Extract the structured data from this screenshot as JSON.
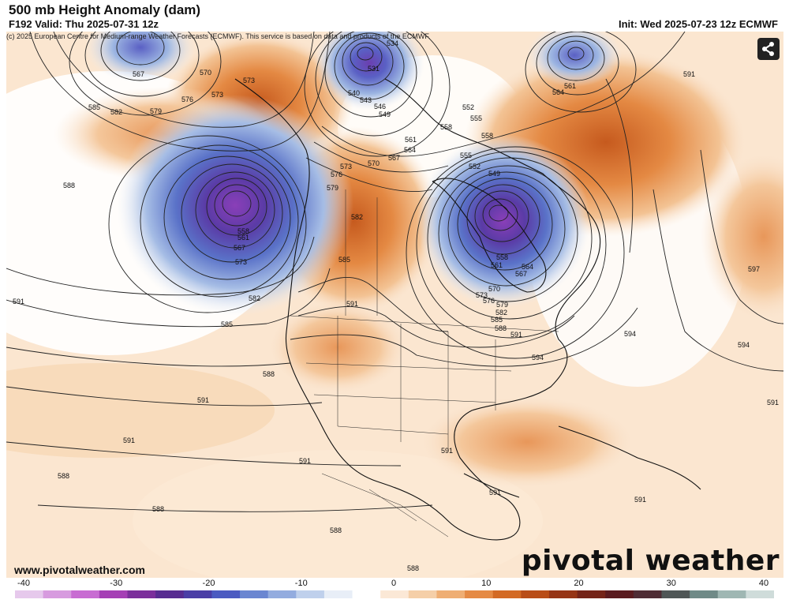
{
  "header": {
    "title": "500 mb Height Anomaly (dam)",
    "valid": "F192 Valid: Thu 2025-07-31 12z",
    "init": "Init: Wed 2025-07-23 12z ECMWF",
    "copyright": "(c) 2025 European Centre for Medium-range Weather Forecasts (ECMWF). This service is based on data and products of the ECMWF."
  },
  "footer": {
    "url": "www.pivotalweather.com",
    "logo": "pivotal weather"
  },
  "share": {
    "icon": "share-icon"
  },
  "colorbar": {
    "ticks": [
      "-40",
      "-30",
      "-20",
      "-10",
      "0",
      "10",
      "20",
      "30",
      "40"
    ],
    "colors": [
      "#e6c9ec",
      "#d79bdf",
      "#c86cd2",
      "#a53fb5",
      "#7b2f9b",
      "#572c91",
      "#4a3ea6",
      "#4b5bc1",
      "#6a86d1",
      "#93acdf",
      "#bfd0ec",
      "#e8eef7",
      "#ffffff",
      "#fbe8d6",
      "#f5cfa8",
      "#efae73",
      "#e58a44",
      "#d36a24",
      "#b94d17",
      "#963515",
      "#742418",
      "#5a1b1f",
      "#4e2c34",
      "#4f5656",
      "#6f8a87",
      "#9fb7b3",
      "#cfdcda"
    ]
  },
  "map_labels": [
    {
      "name": "contour-567-nw",
      "text": "567"
    },
    {
      "name": "contour-570-nw",
      "text": "570"
    },
    {
      "name": "contour-573-nw",
      "text": "573"
    },
    {
      "name": "contour-573-alaska",
      "text": "573"
    },
    {
      "name": "contour-576-nw",
      "text": "576"
    },
    {
      "name": "contour-579-nw",
      "text": "579"
    },
    {
      "name": "contour-582-nw",
      "text": "582"
    },
    {
      "name": "contour-585-nw",
      "text": "585"
    },
    {
      "name": "contour-588-west",
      "text": "588"
    },
    {
      "name": "contour-591-west",
      "text": "591"
    },
    {
      "name": "contour-585-pacific",
      "text": "585"
    },
    {
      "name": "contour-582-pacific",
      "text": "582"
    },
    {
      "name": "contour-588-pacific",
      "text": "588"
    },
    {
      "name": "contour-591-pacific",
      "text": "591"
    },
    {
      "name": "contour-591-sw",
      "text": "591"
    },
    {
      "name": "contour-591-baja",
      "text": "591"
    },
    {
      "name": "contour-588-south",
      "text": "588"
    },
    {
      "name": "contour-588-s2",
      "text": "588"
    },
    {
      "name": "contour-588-s3",
      "text": "588"
    },
    {
      "name": "contour-588-bottom",
      "text": "588"
    },
    {
      "name": "contour-558-low",
      "text": "558"
    },
    {
      "name": "contour-561-low",
      "text": "561"
    },
    {
      "name": "contour-567-low",
      "text": "567"
    },
    {
      "name": "contour-573-low",
      "text": "573"
    },
    {
      "name": "contour-534-arctic",
      "text": "534"
    },
    {
      "name": "contour-531-arctic",
      "text": "531"
    },
    {
      "name": "contour-540-arctic",
      "text": "540"
    },
    {
      "name": "contour-543-arctic",
      "text": "543"
    },
    {
      "name": "contour-546-arctic",
      "text": "546"
    },
    {
      "name": "contour-549-arctic",
      "text": "549"
    },
    {
      "name": "contour-552-hudson",
      "text": "552"
    },
    {
      "name": "contour-555-hudson",
      "text": "555"
    },
    {
      "name": "contour-558-hudson",
      "text": "558"
    },
    {
      "name": "contour-558-hudson2",
      "text": "558"
    },
    {
      "name": "contour-561-greenland",
      "text": "561"
    },
    {
      "name": "contour-564-greenland",
      "text": "564"
    },
    {
      "name": "contour-591-atlantic-ne",
      "text": "591"
    },
    {
      "name": "contour-561-canada",
      "text": "561"
    },
    {
      "name": "contour-564-canada",
      "text": "564"
    },
    {
      "name": "contour-567-canada",
      "text": "567"
    },
    {
      "name": "contour-570-canada",
      "text": "570"
    },
    {
      "name": "contour-573-canada",
      "text": "573"
    },
    {
      "name": "contour-576-canada",
      "text": "576"
    },
    {
      "name": "contour-579-canada",
      "text": "579"
    },
    {
      "name": "contour-582-canada",
      "text": "582"
    },
    {
      "name": "contour-585-canada",
      "text": "585"
    },
    {
      "name": "contour-555-quebec",
      "text": "555"
    },
    {
      "name": "contour-552-quebec",
      "text": "552"
    },
    {
      "name": "contour-549-quebec",
      "text": "549"
    },
    {
      "name": "contour-558-ontario",
      "text": "558"
    },
    {
      "name": "contour-561-ontario",
      "text": "561"
    },
    {
      "name": "contour-564-ontario",
      "text": "564"
    },
    {
      "name": "contour-567-ontario",
      "text": "567"
    },
    {
      "name": "contour-570-ontario",
      "text": "570"
    },
    {
      "name": "contour-573-ontario",
      "text": "573"
    },
    {
      "name": "contour-576-ontario",
      "text": "576"
    },
    {
      "name": "contour-579-ontario",
      "text": "579"
    },
    {
      "name": "contour-582-ontario",
      "text": "582"
    },
    {
      "name": "contour-585-ontario",
      "text": "585"
    },
    {
      "name": "contour-588-newengland",
      "text": "588"
    },
    {
      "name": "contour-591-newengland",
      "text": "591"
    },
    {
      "name": "contour-594-atlantic",
      "text": "594"
    },
    {
      "name": "contour-594-east",
      "text": "594"
    },
    {
      "name": "contour-594-atlantic2",
      "text": "594"
    },
    {
      "name": "contour-597-atlantic",
      "text": "597"
    },
    {
      "name": "contour-591-plains",
      "text": "591"
    },
    {
      "name": "contour-585-rockies",
      "text": "585"
    },
    {
      "name": "contour-582-rockies",
      "text": "582"
    },
    {
      "name": "contour-579-rockies",
      "text": "579"
    },
    {
      "name": "contour-576-rockies",
      "text": "576"
    },
    {
      "name": "contour-573-rockies",
      "text": "573"
    },
    {
      "name": "contour-570-rockies",
      "text": "570"
    },
    {
      "name": "contour-567-prairies",
      "text": "567"
    },
    {
      "name": "contour-564-prairies",
      "text": "564"
    },
    {
      "name": "contour-561-prairies",
      "text": "561"
    },
    {
      "name": "contour-591-gulf",
      "text": "591"
    },
    {
      "name": "contour-591-caribbean",
      "text": "591"
    },
    {
      "name": "contour-591-atlantic-s",
      "text": "591"
    },
    {
      "name": "contour-591-atlantic-e",
      "text": "591"
    }
  ]
}
